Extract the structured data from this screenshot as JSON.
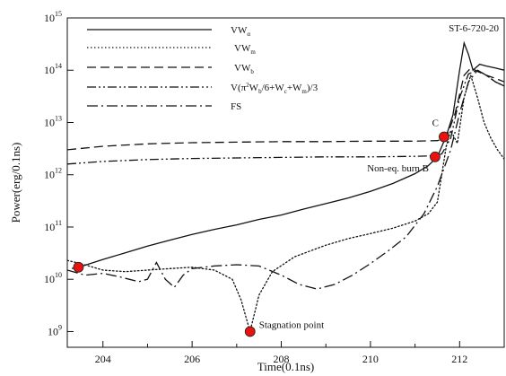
{
  "chart_data": {
    "type": "line",
    "title": "",
    "xlabel": "Time(0.1ns)",
    "ylabel": "Power(erg/0.1ns)",
    "xlim": [
      203.2,
      213.0
    ],
    "ylim": [
      500000000.0,
      1000000000000000.0
    ],
    "yscale": "log",
    "grid": false,
    "legend_placement": "top-left",
    "tag": "ST-6-720-20",
    "x_ticks": [
      {
        "v": 204,
        "label": "204"
      },
      {
        "v": 206,
        "label": "206"
      },
      {
        "v": 208,
        "label": "208"
      },
      {
        "v": 210,
        "label": "210"
      },
      {
        "v": 212,
        "label": "212"
      }
    ],
    "y_ticks": [
      {
        "v": 1000000000.0,
        "base": "10",
        "exp": "9"
      },
      {
        "v": 10000000000.0,
        "base": "10",
        "exp": "10"
      },
      {
        "v": 100000000000.0,
        "base": "10",
        "exp": "11"
      },
      {
        "v": 1000000000000.0,
        "base": "10",
        "exp": "12"
      },
      {
        "v": 10000000000000.0,
        "base": "10",
        "exp": "13"
      },
      {
        "v": 100000000000000.0,
        "base": "10",
        "exp": "14"
      },
      {
        "v": 1000000000000000.0,
        "base": "10",
        "exp": "15"
      }
    ],
    "series": [
      {
        "name_parts": [
          {
            "t": "VW"
          },
          {
            "t": "α",
            "sub": true
          }
        ],
        "style": "solid",
        "x": [
          203.3,
          203.5,
          204,
          204.5,
          205,
          205.5,
          206,
          206.5,
          207,
          207.5,
          208,
          208.5,
          209,
          209.5,
          210,
          210.5,
          211,
          211.3,
          211.5,
          211.7,
          211.85,
          212.0,
          212.1,
          212.2,
          212.3,
          212.45,
          212.6,
          212.8,
          213.0
        ],
        "y": [
          16000000000.0,
          17500000000.0,
          24000000000.0,
          32000000000.0,
          43000000000.0,
          56000000000.0,
          72000000000.0,
          90000000000.0,
          110000000000.0,
          140000000000.0,
          170000000000.0,
          220000000000.0,
          280000000000.0,
          360000000000.0,
          480000000000.0,
          680000000000.0,
          1050000000000.0,
          1500000000000.0,
          2200000000000.0,
          5500000000000.0,
          14000000000000.0,
          100000000000000.0,
          330000000000000.0,
          200000000000000.0,
          100000000000000.0,
          130000000000000.0,
          120000000000000.0,
          110000000000000.0,
          100000000000000.0
        ]
      },
      {
        "name_parts": [
          {
            "t": "VW"
          },
          {
            "t": "m",
            "sub": true
          }
        ],
        "style": "dotted",
        "x": [
          203.2,
          203.5,
          204,
          204.5,
          205,
          205.5,
          206,
          206.5,
          206.9,
          207.1,
          207.3,
          207.5,
          207.8,
          208.3,
          209,
          209.5,
          210,
          210.5,
          211,
          211.3,
          211.5,
          211.6,
          211.7,
          211.8,
          211.95,
          212.1,
          212.25,
          212.4,
          212.55,
          212.7,
          212.85,
          213.0
        ],
        "y": [
          23000000000.0,
          20000000000.0,
          15000000000.0,
          14000000000.0,
          15000000000.0,
          16000000000.0,
          17000000000.0,
          15000000000.0,
          10000000000.0,
          4000000000.0,
          1000000000.0,
          5000000000.0,
          14000000000.0,
          27000000000.0,
          45000000000.0,
          60000000000.0,
          75000000000.0,
          95000000000.0,
          130000000000.0,
          180000000000.0,
          300000000000.0,
          1000000000000.0,
          3500000000000.0,
          7000000000000.0,
          4000000000000.0,
          30000000000000.0,
          80000000000000.0,
          30000000000000.0,
          10000000000000.0,
          5000000000000.0,
          3000000000000.0,
          2000000000000.0
        ]
      },
      {
        "name_parts": [
          {
            "t": "VW"
          },
          {
            "t": "b",
            "sub": true
          }
        ],
        "style": "dashed",
        "x": [
          203.2,
          204,
          205,
          206,
          207,
          208,
          209,
          210,
          211,
          211.5,
          211.7,
          211.9,
          212.1,
          212.25,
          212.4,
          212.6,
          212.8,
          213.0
        ],
        "y": [
          3000000000000.0,
          3500000000000.0,
          3900000000000.0,
          4100000000000.0,
          4200000000000.0,
          4300000000000.0,
          4300000000000.0,
          4400000000000.0,
          4400000000000.0,
          4500000000000.0,
          5000000000000.0,
          15000000000000.0,
          80000000000000.0,
          110000000000000.0,
          95000000000000.0,
          80000000000000.0,
          70000000000000.0,
          60000000000000.0
        ]
      },
      {
        "name_parts": [
          {
            "t": "V(π"
          },
          {
            "t": "2",
            "sup": true
          },
          {
            "t": "W"
          },
          {
            "t": "b",
            "sub": true
          },
          {
            "t": "/6+W"
          },
          {
            "t": "c",
            "sub": true
          },
          {
            "t": "+W"
          },
          {
            "t": "m",
            "sub": true
          },
          {
            "t": ")/3"
          }
        ],
        "style": "dashdotdot",
        "x": [
          203.2,
          204,
          205,
          206,
          207,
          208,
          209,
          210,
          211,
          211.4,
          211.6,
          211.8,
          212.0,
          212.2,
          212.4,
          212.6,
          212.8,
          213.0
        ],
        "y": [
          1600000000000.0,
          1800000000000.0,
          1950000000000.0,
          2050000000000.0,
          2100000000000.0,
          2150000000000.0,
          2200000000000.0,
          2200000000000.0,
          2250000000000.0,
          2300000000000.0,
          2500000000000.0,
          5000000000000.0,
          30000000000000.0,
          85000000000000.0,
          100000000000000.0,
          80000000000000.0,
          60000000000000.0,
          50000000000000.0
        ]
      },
      {
        "name_parts": [
          {
            "t": "FS"
          }
        ],
        "style": "dashdot",
        "x": [
          203.2,
          203.6,
          204.0,
          204.4,
          204.8,
          205.0,
          205.2,
          205.4,
          205.6,
          205.8,
          206.0,
          206.5,
          207.0,
          207.5,
          208.0,
          208.4,
          208.8,
          209.2,
          209.6,
          210.0,
          210.4,
          210.8,
          211.2,
          211.5,
          211.8,
          212.0,
          212.2,
          212.4,
          212.6,
          212.8,
          213.0
        ],
        "y": [
          15000000000.0,
          12000000000.0,
          13000000000.0,
          11000000000.0,
          9000000000.0,
          10000000000.0,
          21000000000.0,
          10000000000.0,
          7000000000.0,
          12000000000.0,
          16000000000.0,
          18000000000.0,
          19000000000.0,
          18000000000.0,
          12000000000.0,
          8000000000.0,
          6500000000.0,
          8000000000.0,
          12000000000.0,
          20000000000.0,
          35000000000.0,
          65000000000.0,
          180000000000.0,
          600000000000.0,
          3000000000000.0,
          15000000000000.0,
          60000000000000.0,
          100000000000000.0,
          80000000000000.0,
          60000000000000.0,
          50000000000000.0
        ]
      }
    ],
    "markers": [
      {
        "x": 203.45,
        "y": 17000000000.0,
        "label": ""
      },
      {
        "x": 207.3,
        "y": 1000000000.0,
        "label": "Stagnation point"
      },
      {
        "x": 211.45,
        "y": 2200000000000.0,
        "label": "Non-eq. burn B"
      },
      {
        "x": 211.65,
        "y": 5300000000000.0,
        "label": "C"
      }
    ],
    "marker_color": "#e8130f"
  }
}
